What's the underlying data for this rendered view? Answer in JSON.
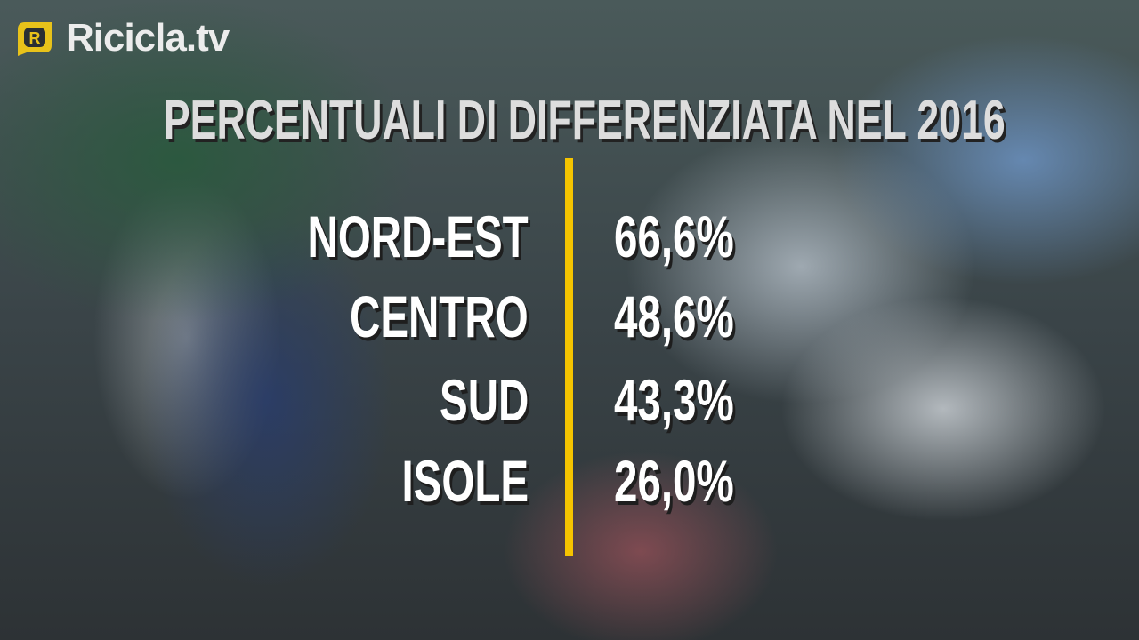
{
  "logo": {
    "text": "Ricicla.tv",
    "mark_letter": "R",
    "accent": "#e8c21a"
  },
  "title": "PERCENTUALI DI DIFFERENZIATA NEL 2016",
  "divider_color": "#f5c400",
  "rows": [
    {
      "label": "NORD-EST",
      "value": "66,6%"
    },
    {
      "label": "CENTRO",
      "value": "48,6%"
    },
    {
      "label": "SUD",
      "value": "43,3%"
    },
    {
      "label": "ISOLE",
      "value": "26,0%"
    }
  ]
}
